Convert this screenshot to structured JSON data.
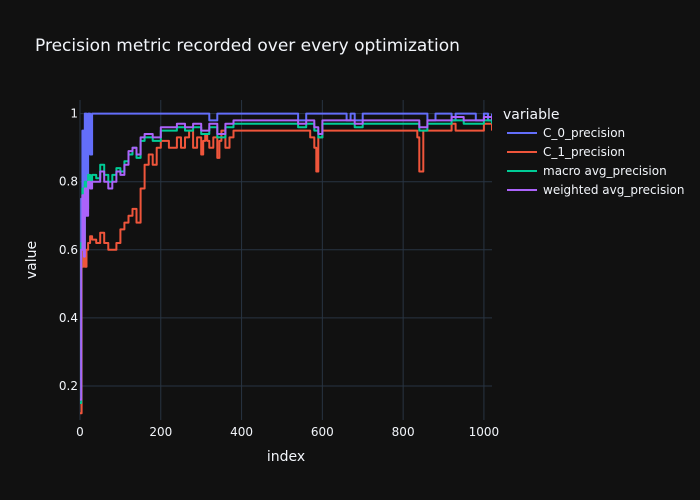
{
  "chart_data": {
    "type": "line",
    "title": "Precision metric recorded over every optimization",
    "xlabel": "index",
    "ylabel": "value",
    "xlim": [
      0,
      1020
    ],
    "ylim": [
      0.1,
      1.04
    ],
    "x_ticks": [
      0,
      200,
      400,
      600,
      800,
      1000
    ],
    "x_tick_labels": [
      "0",
      "200",
      "400",
      "600",
      "800",
      "1000"
    ],
    "y_ticks": [
      0.2,
      0.4,
      0.6,
      0.8,
      1.0
    ],
    "y_tick_labels": [
      "0.2",
      "0.4",
      "0.6",
      "0.8",
      "1"
    ],
    "grid": true,
    "legend": {
      "title": "variable",
      "placement": "right"
    },
    "series": [
      {
        "name": "C_0_precision",
        "color": "#636efa",
        "x": [
          0,
          3,
          6,
          10,
          12,
          16,
          20,
          25,
          30,
          50,
          100,
          200,
          280,
          300,
          320,
          340,
          360,
          380,
          400,
          450,
          500,
          540,
          560,
          580,
          600,
          650,
          660,
          670,
          680,
          700,
          750,
          800,
          840,
          860,
          880,
          900,
          920,
          930,
          950,
          980,
          1000,
          1010,
          1020
        ],
        "values": [
          0.22,
          0.75,
          0.95,
          0.62,
          1.0,
          0.8,
          1.0,
          0.88,
          1.0,
          1.0,
          1.0,
          1.0,
          1.0,
          1.0,
          0.98,
          1.0,
          1.0,
          1.0,
          1.0,
          1.0,
          1.0,
          0.98,
          1.0,
          1.0,
          1.0,
          1.0,
          0.98,
          1.0,
          0.98,
          1.0,
          1.0,
          1.0,
          1.0,
          0.98,
          1.0,
          1.0,
          0.98,
          1.0,
          1.0,
          0.98,
          1.0,
          0.98,
          1.0
        ]
      },
      {
        "name": "C_1_precision",
        "color": "#ef553b",
        "x": [
          0,
          4,
          8,
          12,
          16,
          20,
          25,
          30,
          40,
          50,
          60,
          70,
          80,
          90,
          100,
          110,
          120,
          130,
          140,
          150,
          160,
          170,
          180,
          190,
          200,
          220,
          240,
          250,
          260,
          270,
          280,
          290,
          300,
          305,
          310,
          315,
          320,
          330,
          340,
          345,
          350,
          360,
          370,
          380,
          400,
          450,
          500,
          560,
          570,
          580,
          585,
          590,
          600,
          650,
          680,
          700,
          750,
          800,
          820,
          835,
          840,
          845,
          850,
          860,
          900,
          920,
          930,
          950,
          980,
          1000,
          1020
        ],
        "values": [
          0.12,
          0.55,
          0.6,
          0.55,
          0.6,
          0.62,
          0.64,
          0.63,
          0.62,
          0.65,
          0.62,
          0.6,
          0.6,
          0.62,
          0.66,
          0.68,
          0.7,
          0.72,
          0.68,
          0.78,
          0.85,
          0.88,
          0.85,
          0.9,
          0.92,
          0.9,
          0.93,
          0.9,
          0.93,
          0.95,
          0.9,
          0.93,
          0.88,
          0.92,
          0.94,
          0.92,
          0.9,
          0.93,
          0.87,
          0.92,
          0.95,
          0.9,
          0.93,
          0.95,
          0.95,
          0.95,
          0.95,
          0.95,
          0.93,
          0.9,
          0.83,
          0.93,
          0.95,
          0.95,
          0.95,
          0.95,
          0.95,
          0.95,
          0.95,
          0.93,
          0.83,
          0.83,
          0.95,
          0.95,
          0.95,
          0.97,
          0.95,
          0.95,
          0.95,
          0.97,
          0.95
        ]
      },
      {
        "name": "macro avg_precision",
        "color": "#00cc96",
        "x": [
          0,
          3,
          6,
          10,
          12,
          16,
          20,
          25,
          30,
          40,
          50,
          60,
          70,
          80,
          90,
          100,
          110,
          120,
          130,
          140,
          150,
          160,
          180,
          200,
          220,
          240,
          260,
          280,
          300,
          320,
          340,
          360,
          380,
          400,
          450,
          500,
          540,
          560,
          580,
          590,
          600,
          650,
          680,
          700,
          750,
          800,
          840,
          860,
          900,
          920,
          950,
          980,
          1000,
          1020
        ],
        "values": [
          0.15,
          0.62,
          0.78,
          0.6,
          0.8,
          0.72,
          0.82,
          0.8,
          0.82,
          0.81,
          0.85,
          0.82,
          0.8,
          0.82,
          0.84,
          0.83,
          0.86,
          0.88,
          0.9,
          0.87,
          0.92,
          0.93,
          0.92,
          0.95,
          0.95,
          0.96,
          0.95,
          0.96,
          0.94,
          0.96,
          0.93,
          0.96,
          0.97,
          0.97,
          0.97,
          0.97,
          0.96,
          0.97,
          0.95,
          0.93,
          0.97,
          0.97,
          0.96,
          0.97,
          0.97,
          0.97,
          0.95,
          0.97,
          0.97,
          0.98,
          0.97,
          0.97,
          0.98,
          0.97
        ]
      },
      {
        "name": "weighted avg_precision",
        "color": "#ab63fa",
        "x": [
          0,
          3,
          6,
          10,
          12,
          16,
          20,
          25,
          30,
          40,
          50,
          60,
          70,
          80,
          90,
          100,
          110,
          120,
          130,
          140,
          150,
          160,
          180,
          200,
          220,
          240,
          260,
          280,
          300,
          320,
          340,
          360,
          380,
          400,
          450,
          500,
          540,
          560,
          580,
          590,
          600,
          650,
          680,
          700,
          750,
          800,
          840,
          860,
          900,
          920,
          950,
          980,
          1000,
          1020
        ],
        "values": [
          0.16,
          0.6,
          0.76,
          0.58,
          0.78,
          0.7,
          0.8,
          0.78,
          0.8,
          0.8,
          0.83,
          0.8,
          0.78,
          0.8,
          0.83,
          0.82,
          0.85,
          0.89,
          0.9,
          0.88,
          0.93,
          0.94,
          0.93,
          0.96,
          0.96,
          0.97,
          0.96,
          0.97,
          0.95,
          0.97,
          0.94,
          0.97,
          0.98,
          0.98,
          0.98,
          0.98,
          0.97,
          0.98,
          0.96,
          0.94,
          0.98,
          0.98,
          0.97,
          0.98,
          0.98,
          0.98,
          0.96,
          0.98,
          0.98,
          0.99,
          0.98,
          0.98,
          0.99,
          0.98
        ]
      }
    ]
  }
}
